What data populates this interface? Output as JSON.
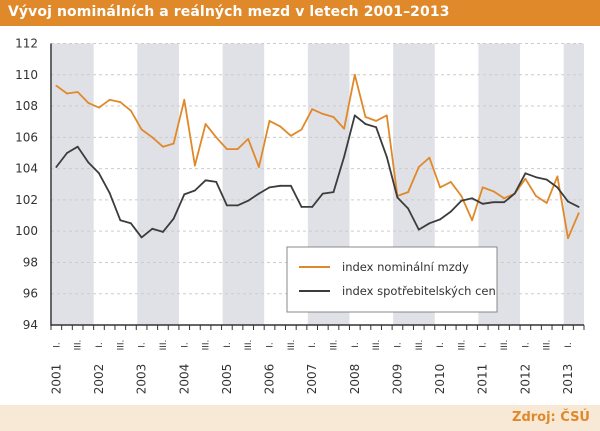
{
  "title": "Vývoj nominálních a reálných mezd v letech 2001–2013",
  "source": "Zdroj: ČSÚ",
  "colors": {
    "title_bar": "#E0892A",
    "footer": "#F8E8D6",
    "band": "#E0E1E6",
    "nominal": "#E0892A",
    "cpi": "#3C3C3C"
  },
  "chart_data": {
    "type": "line",
    "title": "",
    "xlabel": "",
    "ylabel": "",
    "ylim": [
      94,
      112
    ],
    "yticks": [
      94,
      96,
      98,
      100,
      102,
      104,
      106,
      108,
      110,
      112
    ],
    "grid": true,
    "legend_position": "bottom-center",
    "years": [
      "2001",
      "2002",
      "2003",
      "2004",
      "2005",
      "2006",
      "2007",
      "2008",
      "2009",
      "2010",
      "2011",
      "2012",
      "2013"
    ],
    "quarter_labels": {
      "q1": "I.",
      "q3": "III."
    },
    "x_start": "2001 Q1",
    "x_end": "2013 Q2",
    "series": [
      {
        "name": "index nominální mzdy",
        "values": [
          109.3,
          108.8,
          108.9,
          108.2,
          107.9,
          108.4,
          108.25,
          107.7,
          106.5,
          106.0,
          105.4,
          105.6,
          108.4,
          104.2,
          106.85,
          106.0,
          105.25,
          105.25,
          105.9,
          104.1,
          107.05,
          106.7,
          106.1,
          106.5,
          107.8,
          107.5,
          107.3,
          106.55,
          110.0,
          107.3,
          107.05,
          107.4,
          102.25,
          102.5,
          104.1,
          104.7,
          102.8,
          103.15,
          102.25,
          100.7,
          102.8,
          102.55,
          102.1,
          102.4,
          103.35,
          102.25,
          101.8,
          103.5,
          99.55,
          101.15
        ]
      },
      {
        "name": "index spotřebitelských cen",
        "values": [
          104.1,
          105.0,
          105.4,
          104.4,
          103.7,
          102.45,
          100.7,
          100.5,
          99.6,
          100.15,
          99.95,
          100.8,
          102.35,
          102.6,
          103.25,
          103.15,
          101.65,
          101.65,
          101.95,
          102.4,
          102.8,
          102.9,
          102.9,
          101.55,
          101.55,
          102.4,
          102.5,
          104.75,
          107.4,
          106.85,
          106.65,
          104.75,
          102.15,
          101.45,
          100.1,
          100.5,
          100.75,
          101.25,
          101.95,
          102.1,
          101.75,
          101.85,
          101.85,
          102.4,
          103.7,
          103.45,
          103.3,
          102.8,
          101.9,
          101.55
        ]
      }
    ]
  }
}
